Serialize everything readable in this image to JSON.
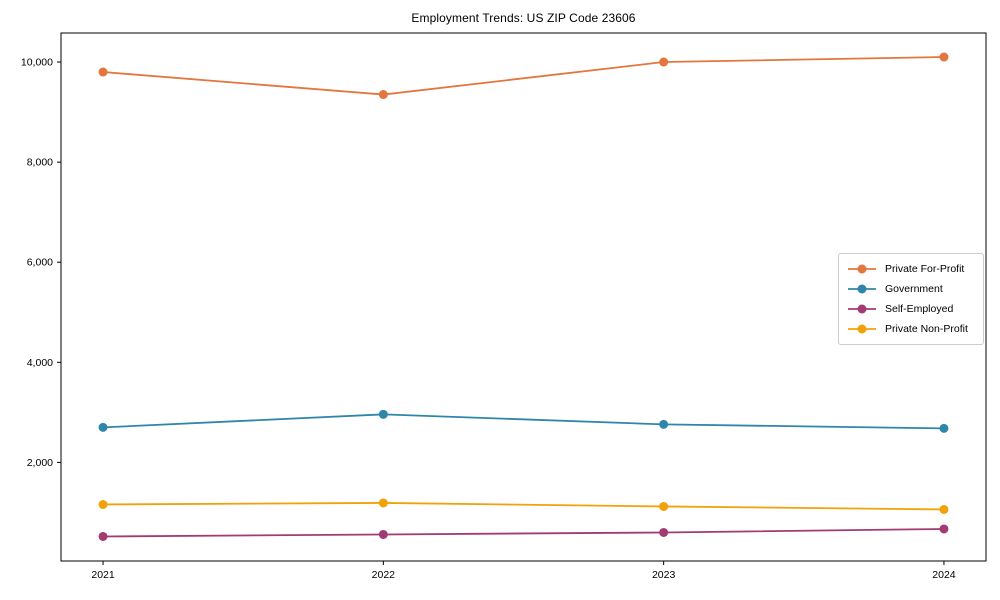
{
  "chart_data": {
    "type": "line",
    "title": "Employment Trends: US ZIP Code 23606",
    "x": [
      2021,
      2022,
      2023,
      2024
    ],
    "x_tick_labels": [
      "2021",
      "2022",
      "2023",
      "2024"
    ],
    "y_ticks": [
      2000,
      4000,
      6000,
      8000,
      10000
    ],
    "y_tick_labels": [
      "2,000",
      "4,000",
      "6,000",
      "8,000",
      "10,000"
    ],
    "xlim": [
      2020.85,
      2024.15
    ],
    "ylim": [
      30,
      10580
    ],
    "xlabel": "",
    "ylabel": "",
    "grid": false,
    "legend_position": "center-right",
    "background_color": "#ffffff",
    "spine_color": "#000000",
    "series": [
      {
        "name": "Private For-Profit",
        "color": "#e2763c",
        "values": [
          9800,
          9350,
          10000,
          10100
        ]
      },
      {
        "name": "Government",
        "color": "#2e86ab",
        "values": [
          2700,
          2960,
          2760,
          2680
        ]
      },
      {
        "name": "Self-Employed",
        "color": "#a23b72",
        "values": [
          520,
          560,
          600,
          670
        ]
      },
      {
        "name": "Private Non-Profit",
        "color": "#f1a208",
        "values": [
          1160,
          1190,
          1120,
          1060
        ]
      }
    ]
  }
}
